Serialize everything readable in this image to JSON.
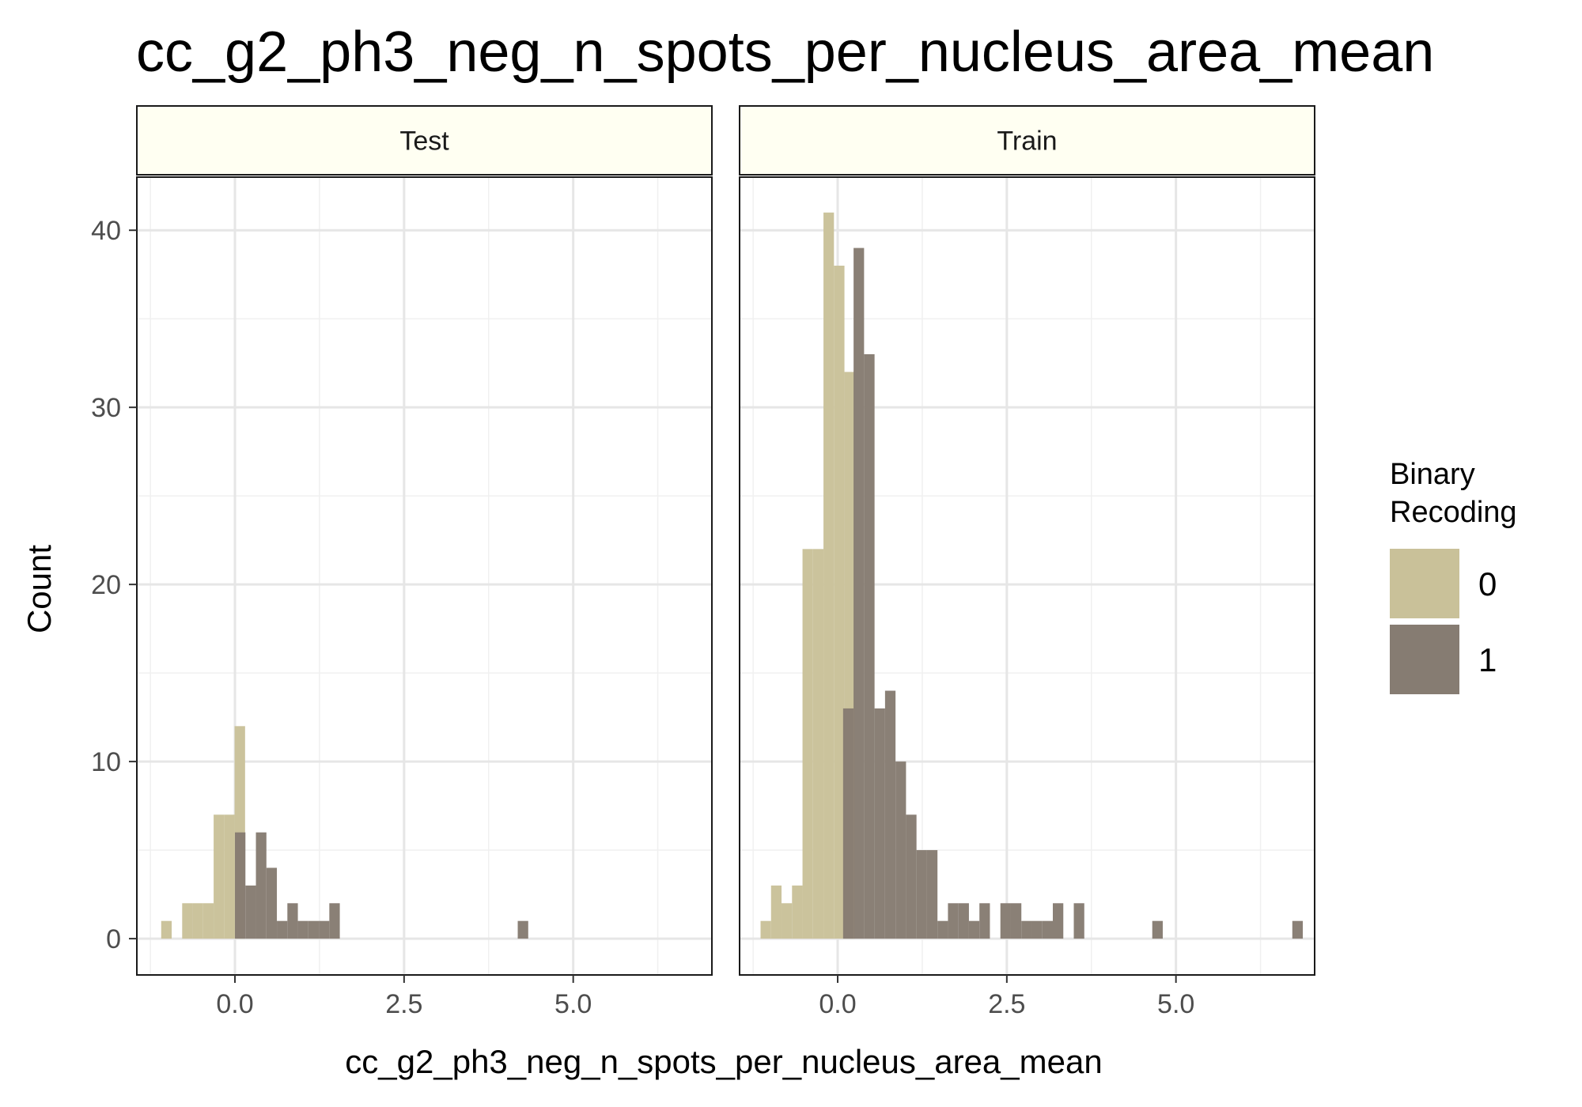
{
  "chart_data": {
    "type": "bar",
    "title": "cc_g2_ph3_neg_n_spots_per_nucleus_area_mean",
    "xlabel": "cc_g2_ph3_neg_n_spots_per_nucleus_area_mean",
    "ylabel": "Count",
    "xlim": [
      -1.45,
      7.05
    ],
    "ylim": [
      -2.05,
      43.0
    ],
    "x_ticks": [
      0.0,
      2.5,
      5.0
    ],
    "x_tick_labels": [
      "0.0",
      "2.5",
      "5.0"
    ],
    "y_ticks": [
      0,
      10,
      20,
      30,
      40
    ],
    "y_tick_labels": [
      "0",
      "10",
      "20",
      "30",
      "40"
    ],
    "grid": true,
    "bin_width": 0.155,
    "legend": {
      "title_lines": [
        "Binary",
        "Recoding"
      ],
      "position": "right",
      "entries": [
        {
          "label": "0",
          "color": "#c9c199"
        },
        {
          "label": "1",
          "color": "#867c72"
        }
      ]
    },
    "panels": [
      {
        "label": "Test",
        "series": [
          {
            "name": "0",
            "color": "#c9c199",
            "bins": [
              [
                -1.09,
                1
              ],
              [
                -0.78,
                2
              ],
              [
                -0.625,
                2
              ],
              [
                -0.47,
                2
              ],
              [
                -0.315,
                7
              ],
              [
                -0.16,
                7
              ],
              [
                -0.005,
                12
              ]
            ]
          },
          {
            "name": "1",
            "color": "#867c72",
            "bins": [
              [
                0.0,
                6
              ],
              [
                0.155,
                3
              ],
              [
                0.31,
                6
              ],
              [
                0.465,
                4
              ],
              [
                0.62,
                1
              ],
              [
                0.775,
                2
              ],
              [
                0.93,
                1
              ],
              [
                1.085,
                1
              ],
              [
                1.24,
                1
              ],
              [
                1.395,
                2
              ],
              [
                4.18,
                1
              ]
            ]
          }
        ]
      },
      {
        "label": "Train",
        "series": [
          {
            "name": "0",
            "color": "#c9c199",
            "bins": [
              [
                -1.14,
                1
              ],
              [
                -0.985,
                3
              ],
              [
                -0.83,
                2
              ],
              [
                -0.675,
                3
              ],
              [
                -0.52,
                22
              ],
              [
                -0.365,
                22
              ],
              [
                -0.21,
                41
              ],
              [
                -0.055,
                38
              ],
              [
                0.1,
                32
              ]
            ]
          },
          {
            "name": "1",
            "color": "#867c72",
            "bins": [
              [
                0.08,
                13
              ],
              [
                0.235,
                39
              ],
              [
                0.39,
                33
              ],
              [
                0.545,
                13
              ],
              [
                0.7,
                14
              ],
              [
                0.855,
                10
              ],
              [
                1.01,
                7
              ],
              [
                1.165,
                5
              ],
              [
                1.32,
                5
              ],
              [
                1.475,
                1
              ],
              [
                1.63,
                2
              ],
              [
                1.785,
                2
              ],
              [
                1.94,
                1
              ],
              [
                2.095,
                2
              ],
              [
                2.405,
                2
              ],
              [
                2.56,
                2
              ],
              [
                2.715,
                1
              ],
              [
                2.87,
                1
              ],
              [
                3.025,
                1
              ],
              [
                3.18,
                2
              ],
              [
                3.49,
                2
              ],
              [
                4.65,
                1
              ],
              [
                6.72,
                1
              ]
            ]
          }
        ]
      }
    ]
  }
}
